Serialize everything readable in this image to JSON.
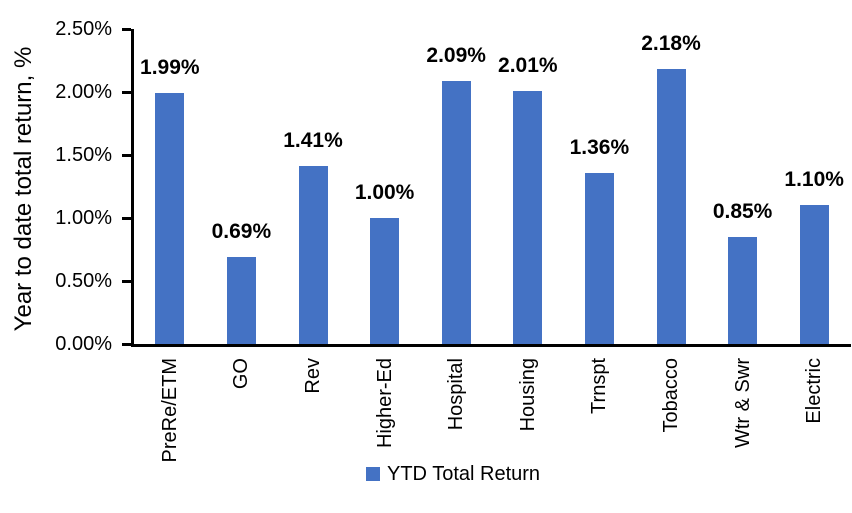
{
  "chart_data": {
    "type": "bar",
    "title": "",
    "xlabel": "",
    "ylabel": "Year to date total return, %",
    "categories": [
      "PreRe/ETM",
      "GO",
      "Rev",
      "Higher-Ed",
      "Hospital",
      "Housing",
      "Trnspt",
      "Tobacco",
      "Wtr & Swr",
      "Electric"
    ],
    "values": [
      1.99,
      0.69,
      1.41,
      1.0,
      2.09,
      2.01,
      1.36,
      2.18,
      0.85,
      1.1
    ],
    "data_labels": [
      "1.99%",
      "0.69%",
      "1.41%",
      "1.00%",
      "2.09%",
      "2.01%",
      "1.36%",
      "2.18%",
      "0.85%",
      "1.10%"
    ],
    "ylim": [
      0,
      2.5
    ],
    "y_tick_values": [
      0,
      0.5,
      1.0,
      1.5,
      2.0,
      2.5
    ],
    "y_tick_labels": [
      "0.00%",
      "0.50%",
      "1.00%",
      "1.50%",
      "2.00%",
      "2.50%"
    ],
    "grid": false,
    "bar_color": "#4472C4",
    "axis_color": "#000000",
    "text_color": "#000000",
    "legend": {
      "label": "YTD Total Return",
      "color": "#4472C4",
      "position": "bottom"
    }
  }
}
